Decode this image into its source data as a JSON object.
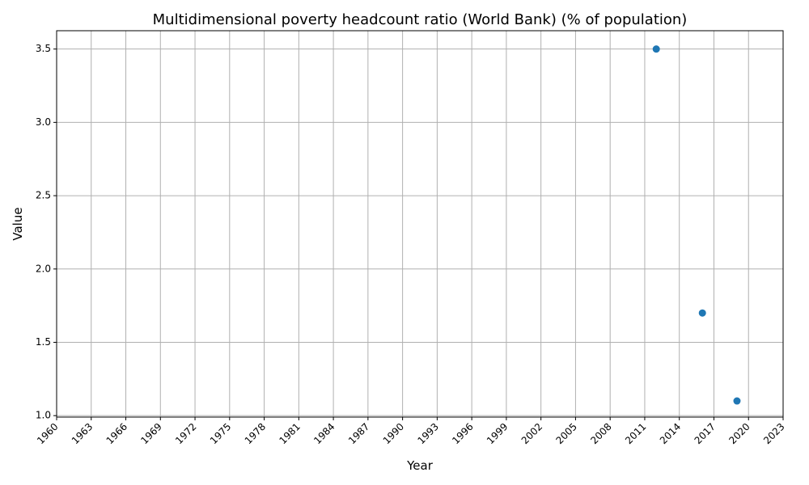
{
  "chart_data": {
    "type": "scatter",
    "title": "Multidimensional poverty headcount ratio (World Bank) (% of population)",
    "xlabel": "Year",
    "ylabel": "Value",
    "x": [
      2012,
      2016,
      2019
    ],
    "y": [
      3.5,
      1.7,
      1.1
    ],
    "xlim": [
      1960,
      2023
    ],
    "ylim": [
      0.99,
      3.625
    ],
    "x_ticks": [
      "1960",
      "1963",
      "1966",
      "1969",
      "1972",
      "1975",
      "1978",
      "1981",
      "1984",
      "1987",
      "1990",
      "1993",
      "1996",
      "1999",
      "2002",
      "2005",
      "2008",
      "2011",
      "2014",
      "2017",
      "2020",
      "2023"
    ],
    "y_ticks": [
      "1.0",
      "1.5",
      "2.0",
      "2.5",
      "3.0",
      "3.5"
    ],
    "grid": true,
    "marker_color": "#1f77b4"
  }
}
